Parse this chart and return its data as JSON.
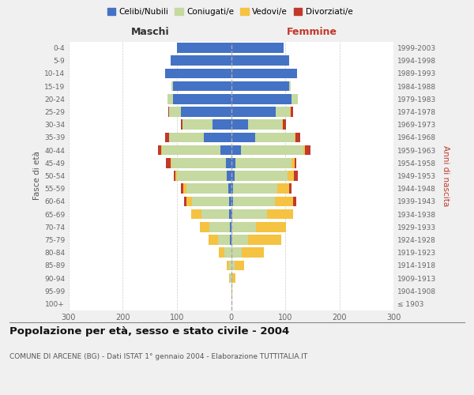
{
  "age_groups": [
    "100+",
    "95-99",
    "90-94",
    "85-89",
    "80-84",
    "75-79",
    "70-74",
    "65-69",
    "60-64",
    "55-59",
    "50-54",
    "45-49",
    "40-44",
    "35-39",
    "30-34",
    "25-29",
    "20-24",
    "15-19",
    "10-14",
    "5-9",
    "0-4"
  ],
  "birth_years": [
    "≤ 1903",
    "1904-1908",
    "1909-1913",
    "1914-1918",
    "1919-1923",
    "1924-1928",
    "1929-1933",
    "1934-1938",
    "1939-1943",
    "1944-1948",
    "1949-1953",
    "1954-1958",
    "1959-1963",
    "1964-1968",
    "1969-1973",
    "1974-1978",
    "1979-1983",
    "1984-1988",
    "1989-1993",
    "1994-1998",
    "1999-2003"
  ],
  "males": {
    "celibe": [
      0,
      0,
      0,
      0,
      0,
      2,
      2,
      3,
      4,
      5,
      8,
      10,
      20,
      50,
      35,
      92,
      108,
      108,
      122,
      112,
      100
    ],
    "coniugato": [
      0,
      0,
      2,
      4,
      12,
      22,
      38,
      52,
      68,
      78,
      92,
      100,
      108,
      65,
      55,
      22,
      10,
      2,
      0,
      0,
      0
    ],
    "vedovo": [
      0,
      0,
      1,
      4,
      10,
      18,
      18,
      18,
      10,
      6,
      3,
      2,
      1,
      0,
      0,
      0,
      0,
      0,
      0,
      0,
      0
    ],
    "divorziato": [
      0,
      0,
      0,
      0,
      0,
      0,
      0,
      0,
      5,
      4,
      3,
      8,
      6,
      7,
      3,
      2,
      0,
      0,
      0,
      0,
      0
    ]
  },
  "females": {
    "nubile": [
      0,
      0,
      0,
      0,
      0,
      0,
      1,
      2,
      3,
      4,
      6,
      8,
      18,
      45,
      32,
      82,
      112,
      107,
      122,
      107,
      97
    ],
    "coniugata": [
      0,
      0,
      2,
      6,
      20,
      32,
      45,
      65,
      78,
      82,
      98,
      103,
      115,
      72,
      62,
      27,
      12,
      3,
      0,
      0,
      0
    ],
    "vedova": [
      1,
      2,
      6,
      18,
      40,
      60,
      55,
      48,
      33,
      22,
      12,
      6,
      4,
      2,
      1,
      1,
      0,
      0,
      0,
      0,
      0
    ],
    "divorziata": [
      0,
      0,
      0,
      0,
      0,
      0,
      0,
      0,
      6,
      4,
      8,
      4,
      9,
      9,
      6,
      4,
      0,
      0,
      0,
      0,
      0
    ]
  },
  "colors": {
    "celibe": "#4472c4",
    "coniugato": "#c5d9a0",
    "vedovo": "#f5c242",
    "divorziato": "#c0392b"
  },
  "legend_labels": [
    "Celibi/Nubili",
    "Coniugati/e",
    "Vedovi/e",
    "Divorziati/e"
  ],
  "title": "Popolazione per età, sesso e stato civile - 2004",
  "subtitle": "COMUNE DI ARCENE (BG) - Dati ISTAT 1° gennaio 2004 - Elaborazione TUTTITALIA.IT",
  "maschi_label": "Maschi",
  "femmine_label": "Femmine",
  "ylabel_left": "Fasce di età",
  "ylabel_right": "Anni di nascita",
  "xlim": 300,
  "bg_color": "#f0f0f0",
  "plot_bg": "#ffffff"
}
